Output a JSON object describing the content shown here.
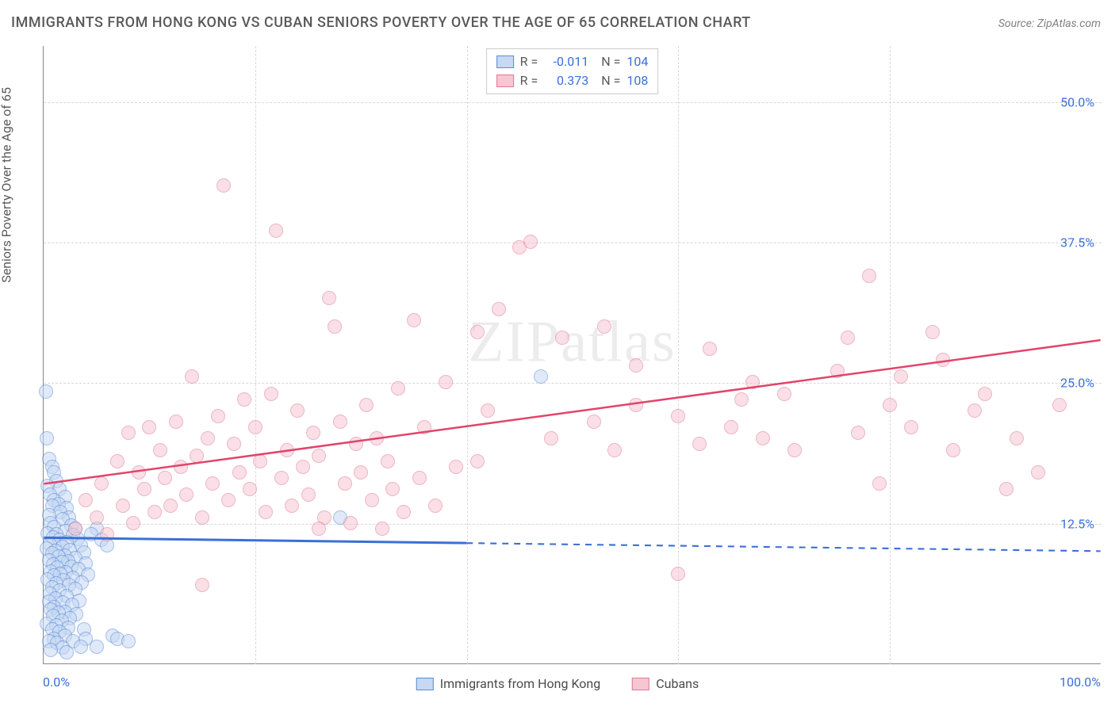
{
  "title": "IMMIGRANTS FROM HONG KONG VS CUBAN SENIORS POVERTY OVER THE AGE OF 65 CORRELATION CHART",
  "source": "Source: ZipAtlas.com",
  "watermark": "ZIPatlas",
  "chart": {
    "type": "scatter",
    "y_label": "Seniors Poverty Over the Age of 65",
    "xlim": [
      0,
      100
    ],
    "ylim": [
      0,
      55
    ],
    "x_ticks": [
      0,
      100
    ],
    "x_tick_labels": [
      "0.0%",
      "100.0%"
    ],
    "y_ticks": [
      12.5,
      25.0,
      37.5,
      50.0
    ],
    "y_tick_labels": [
      "12.5%",
      "25.0%",
      "37.5%",
      "50.0%"
    ],
    "minor_x_grid": [
      20,
      40,
      60,
      80
    ],
    "background_color": "#ffffff",
    "grid_color": "#d8d8d8",
    "axis_color": "#888888",
    "tick_label_color": "#3b6fd8",
    "title_color": "#5a5a5a",
    "title_fontsize": 18,
    "label_fontsize": 16,
    "marker_radius": 9,
    "marker_stroke_width": 1.5,
    "series": [
      {
        "name": "Immigrants from Hong Kong",
        "fill": "#c6d8f3",
        "stroke": "#5a8bd8",
        "fill_opacity": 0.55,
        "r": -0.011,
        "n": 104,
        "trend": {
          "y_at_x0": 11.2,
          "y_at_x100": 10.0,
          "solid_until_x": 40,
          "color": "#3b6fd8",
          "width": 3
        },
        "points": [
          [
            0.2,
            24.2
          ],
          [
            0.3,
            20.0
          ],
          [
            0.5,
            18.2
          ],
          [
            0.8,
            17.5
          ],
          [
            1.0,
            17.0
          ],
          [
            1.2,
            16.2
          ],
          [
            0.4,
            15.8
          ],
          [
            1.5,
            15.5
          ],
          [
            0.6,
            15.0
          ],
          [
            2.0,
            14.8
          ],
          [
            1.0,
            14.5
          ],
          [
            1.4,
            14.2
          ],
          [
            0.8,
            14.0
          ],
          [
            2.2,
            13.8
          ],
          [
            1.6,
            13.5
          ],
          [
            0.5,
            13.2
          ],
          [
            2.4,
            13.0
          ],
          [
            1.8,
            12.8
          ],
          [
            0.7,
            12.5
          ],
          [
            2.6,
            12.3
          ],
          [
            1.0,
            12.1
          ],
          [
            3.0,
            12.0
          ],
          [
            2.0,
            11.8
          ],
          [
            0.4,
            11.6
          ],
          [
            1.2,
            11.5
          ],
          [
            2.8,
            11.4
          ],
          [
            0.9,
            11.2
          ],
          [
            3.2,
            11.1
          ],
          [
            1.5,
            11.0
          ],
          [
            2.2,
            10.8
          ],
          [
            0.6,
            10.6
          ],
          [
            3.5,
            10.5
          ],
          [
            1.8,
            10.4
          ],
          [
            0.3,
            10.2
          ],
          [
            2.5,
            10.1
          ],
          [
            1.1,
            10.0
          ],
          [
            3.8,
            9.9
          ],
          [
            0.8,
            9.8
          ],
          [
            2.0,
            9.6
          ],
          [
            1.4,
            9.5
          ],
          [
            3.0,
            9.4
          ],
          [
            0.5,
            9.2
          ],
          [
            2.3,
            9.1
          ],
          [
            1.7,
            9.0
          ],
          [
            4.0,
            8.9
          ],
          [
            0.9,
            8.8
          ],
          [
            2.6,
            8.6
          ],
          [
            1.3,
            8.5
          ],
          [
            3.3,
            8.4
          ],
          [
            0.7,
            8.2
          ],
          [
            2.1,
            8.1
          ],
          [
            1.6,
            8.0
          ],
          [
            4.2,
            7.9
          ],
          [
            1.0,
            7.8
          ],
          [
            2.8,
            7.6
          ],
          [
            0.4,
            7.5
          ],
          [
            1.9,
            7.4
          ],
          [
            3.6,
            7.2
          ],
          [
            1.2,
            7.1
          ],
          [
            2.4,
            7.0
          ],
          [
            0.8,
            6.8
          ],
          [
            3.0,
            6.6
          ],
          [
            1.5,
            6.5
          ],
          [
            5.0,
            12.0
          ],
          [
            0.6,
            6.2
          ],
          [
            2.2,
            6.0
          ],
          [
            1.1,
            5.8
          ],
          [
            3.4,
            5.6
          ],
          [
            0.5,
            5.5
          ],
          [
            1.8,
            5.4
          ],
          [
            2.7,
            5.2
          ],
          [
            1.0,
            5.0
          ],
          [
            4.5,
            11.5
          ],
          [
            0.7,
            4.8
          ],
          [
            2.0,
            4.6
          ],
          [
            1.4,
            4.5
          ],
          [
            3.1,
            4.4
          ],
          [
            0.9,
            4.2
          ],
          [
            2.5,
            4.0
          ],
          [
            1.7,
            3.8
          ],
          [
            5.5,
            11.0
          ],
          [
            0.3,
            3.5
          ],
          [
            1.2,
            3.4
          ],
          [
            2.3,
            3.2
          ],
          [
            0.8,
            3.0
          ],
          [
            3.8,
            3.0
          ],
          [
            1.5,
            2.8
          ],
          [
            6.0,
            10.5
          ],
          [
            2.0,
            2.5
          ],
          [
            1.0,
            2.2
          ],
          [
            4.0,
            2.2
          ],
          [
            0.5,
            2.0
          ],
          [
            2.8,
            2.0
          ],
          [
            1.3,
            1.8
          ],
          [
            6.5,
            2.5
          ],
          [
            3.5,
            1.5
          ],
          [
            1.8,
            1.4
          ],
          [
            7.0,
            2.2
          ],
          [
            0.7,
            1.2
          ],
          [
            2.2,
            1.0
          ],
          [
            5.0,
            1.5
          ],
          [
            28.0,
            13.0
          ],
          [
            8.0,
            2.0
          ],
          [
            47.0,
            25.5
          ]
        ]
      },
      {
        "name": "Cubans",
        "fill": "#f6c6d2",
        "stroke": "#e07a94",
        "fill_opacity": 0.55,
        "r": 0.373,
        "n": 108,
        "trend": {
          "y_at_x0": 16.0,
          "y_at_x100": 28.8,
          "solid_until_x": 100,
          "color": "#e2446b",
          "width": 2.5
        },
        "points": [
          [
            17.0,
            42.5
          ],
          [
            22.0,
            38.5
          ],
          [
            27.0,
            32.5
          ],
          [
            27.5,
            30.0
          ],
          [
            35.0,
            30.5
          ],
          [
            36.0,
            21.0
          ],
          [
            45.0,
            37.0
          ],
          [
            43.0,
            31.5
          ],
          [
            41.0,
            29.5
          ],
          [
            41.0,
            18.0
          ],
          [
            42.0,
            22.5
          ],
          [
            46.0,
            37.5
          ],
          [
            48.0,
            20.0
          ],
          [
            49.0,
            29.0
          ],
          [
            52.0,
            21.5
          ],
          [
            53.0,
            30.0
          ],
          [
            54.0,
            19.0
          ],
          [
            56.0,
            23.0
          ],
          [
            56.0,
            26.5
          ],
          [
            60.0,
            8.0
          ],
          [
            60.0,
            22.0
          ],
          [
            62.0,
            19.5
          ],
          [
            63.0,
            28.0
          ],
          [
            65.0,
            21.0
          ],
          [
            66.0,
            23.5
          ],
          [
            67.0,
            25.0
          ],
          [
            68.0,
            20.0
          ],
          [
            70.0,
            24.0
          ],
          [
            71.0,
            19.0
          ],
          [
            75.0,
            26.0
          ],
          [
            76.0,
            29.0
          ],
          [
            77.0,
            20.5
          ],
          [
            78.0,
            34.5
          ],
          [
            79.0,
            16.0
          ],
          [
            80.0,
            23.0
          ],
          [
            81.0,
            25.5
          ],
          [
            82.0,
            21.0
          ],
          [
            84.0,
            29.5
          ],
          [
            85.0,
            27.0
          ],
          [
            86.0,
            19.0
          ],
          [
            88.0,
            22.5
          ],
          [
            89.0,
            24.0
          ],
          [
            91.0,
            15.5
          ],
          [
            92.0,
            20.0
          ],
          [
            94.0,
            17.0
          ],
          [
            96.0,
            23.0
          ],
          [
            3.0,
            12.0
          ],
          [
            4.0,
            14.5
          ],
          [
            5.0,
            13.0
          ],
          [
            5.5,
            16.0
          ],
          [
            6.0,
            11.5
          ],
          [
            7.0,
            18.0
          ],
          [
            7.5,
            14.0
          ],
          [
            8.0,
            20.5
          ],
          [
            8.5,
            12.5
          ],
          [
            9.0,
            17.0
          ],
          [
            9.5,
            15.5
          ],
          [
            10.0,
            21.0
          ],
          [
            10.5,
            13.5
          ],
          [
            11.0,
            19.0
          ],
          [
            11.5,
            16.5
          ],
          [
            12.0,
            14.0
          ],
          [
            12.5,
            21.5
          ],
          [
            13.0,
            17.5
          ],
          [
            13.5,
            15.0
          ],
          [
            14.0,
            25.5
          ],
          [
            14.5,
            18.5
          ],
          [
            15.0,
            13.0
          ],
          [
            15.5,
            20.0
          ],
          [
            16.0,
            16.0
          ],
          [
            16.5,
            22.0
          ],
          [
            17.5,
            14.5
          ],
          [
            18.0,
            19.5
          ],
          [
            18.5,
            17.0
          ],
          [
            19.0,
            23.5
          ],
          [
            19.5,
            15.5
          ],
          [
            20.0,
            21.0
          ],
          [
            20.5,
            18.0
          ],
          [
            21.0,
            13.5
          ],
          [
            21.5,
            24.0
          ],
          [
            22.5,
            16.5
          ],
          [
            23.0,
            19.0
          ],
          [
            23.5,
            14.0
          ],
          [
            24.0,
            22.5
          ],
          [
            24.5,
            17.5
          ],
          [
            25.0,
            15.0
          ],
          [
            25.5,
            20.5
          ],
          [
            26.0,
            18.5
          ],
          [
            26.5,
            13.0
          ],
          [
            28.0,
            21.5
          ],
          [
            28.5,
            16.0
          ],
          [
            29.0,
            12.5
          ],
          [
            29.5,
            19.5
          ],
          [
            30.0,
            17.0
          ],
          [
            30.5,
            23.0
          ],
          [
            31.0,
            14.5
          ],
          [
            31.5,
            20.0
          ],
          [
            32.0,
            12.0
          ],
          [
            32.5,
            18.0
          ],
          [
            33.0,
            15.5
          ],
          [
            33.5,
            24.5
          ],
          [
            34.0,
            13.5
          ],
          [
            26.0,
            12.0
          ],
          [
            35.5,
            16.5
          ],
          [
            15.0,
            7.0
          ],
          [
            37.0,
            14.0
          ],
          [
            38.0,
            25.0
          ],
          [
            39.0,
            17.5
          ]
        ]
      }
    ]
  },
  "legend_bottom": [
    {
      "label": "Immigrants from Hong Kong",
      "fill": "#c6d8f3",
      "stroke": "#5a8bd8"
    },
    {
      "label": "Cubans",
      "fill": "#f6c6d2",
      "stroke": "#e07a94"
    }
  ]
}
